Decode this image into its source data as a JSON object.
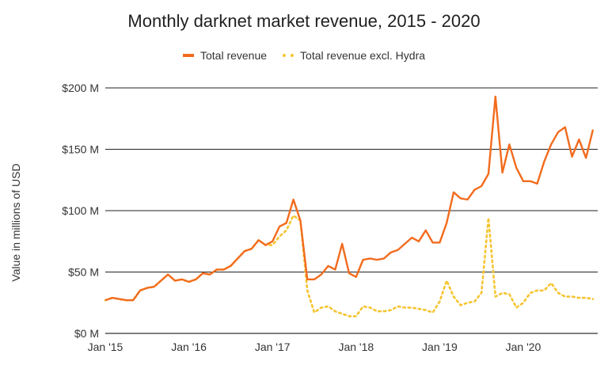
{
  "chart_data": {
    "type": "line",
    "title": "Monthly darknet market revenue, 2015 - 2020",
    "xlabel": "",
    "ylabel": "Value in millions of USD",
    "ylim": [
      0,
      200
    ],
    "y_ticks": [
      "$0 M",
      "$50 M",
      "$100 M",
      "$150 M",
      "$200 M"
    ],
    "y_tick_values": [
      0,
      50,
      100,
      150,
      200
    ],
    "x_ticks": [
      "Jan '15",
      "Jan '16",
      "Jan '17",
      "Jan '18",
      "Jan '19",
      "Jan '20"
    ],
    "grid": "horizontal",
    "legend_position": "top",
    "colors": {
      "total": "#f26b1d",
      "excl_hydra": "#f6c431"
    },
    "x": [
      "2015-01",
      "2015-02",
      "2015-03",
      "2015-04",
      "2015-05",
      "2015-06",
      "2015-07",
      "2015-08",
      "2015-09",
      "2015-10",
      "2015-11",
      "2015-12",
      "2016-01",
      "2016-02",
      "2016-03",
      "2016-04",
      "2016-05",
      "2016-06",
      "2016-07",
      "2016-08",
      "2016-09",
      "2016-10",
      "2016-11",
      "2016-12",
      "2017-01",
      "2017-02",
      "2017-03",
      "2017-04",
      "2017-05",
      "2017-06",
      "2017-07",
      "2017-08",
      "2017-09",
      "2017-10",
      "2017-11",
      "2017-12",
      "2018-01",
      "2018-02",
      "2018-03",
      "2018-04",
      "2018-05",
      "2018-06",
      "2018-07",
      "2018-08",
      "2018-09",
      "2018-10",
      "2018-11",
      "2018-12",
      "2019-01",
      "2019-02",
      "2019-03",
      "2019-04",
      "2019-05",
      "2019-06",
      "2019-07",
      "2019-08",
      "2019-09",
      "2019-10",
      "2019-11",
      "2019-12",
      "2020-01",
      "2020-02",
      "2020-03",
      "2020-04",
      "2020-05",
      "2020-06",
      "2020-07",
      "2020-08",
      "2020-09",
      "2020-10",
      "2020-11",
      "2020-12"
    ],
    "series": [
      {
        "name": "Total revenue",
        "values": [
          27,
          29,
          28,
          27,
          27,
          35,
          37,
          38,
          43,
          48,
          43,
          44,
          42,
          44,
          49,
          48,
          52,
          52,
          55,
          61,
          67,
          69,
          76,
          72,
          75,
          87,
          90,
          109,
          92,
          44,
          44,
          48,
          55,
          52,
          73,
          49,
          46,
          60,
          61,
          60,
          61,
          66,
          68,
          73,
          78,
          75,
          84,
          74,
          74,
          90,
          115,
          110,
          109,
          117,
          120,
          130,
          193,
          131,
          154,
          135,
          124,
          124,
          122,
          140,
          154,
          164,
          168,
          144,
          158,
          143,
          166,
          null
        ]
      },
      {
        "name": "Total revenue excl. Hydra",
        "values": [
          27,
          29,
          28,
          27,
          27,
          35,
          37,
          38,
          43,
          48,
          43,
          44,
          42,
          44,
          49,
          48,
          52,
          52,
          55,
          61,
          67,
          69,
          76,
          72,
          72,
          79,
          84,
          96,
          92,
          35,
          17,
          21,
          22,
          18,
          16,
          14,
          14,
          22,
          21,
          18,
          18,
          19,
          22,
          21,
          21,
          20,
          19,
          17,
          26,
          43,
          30,
          23,
          25,
          26,
          33,
          94,
          30,
          33,
          32,
          21,
          25,
          33,
          35,
          35,
          41,
          33,
          30,
          30,
          29,
          29,
          28,
          null
        ]
      }
    ]
  }
}
